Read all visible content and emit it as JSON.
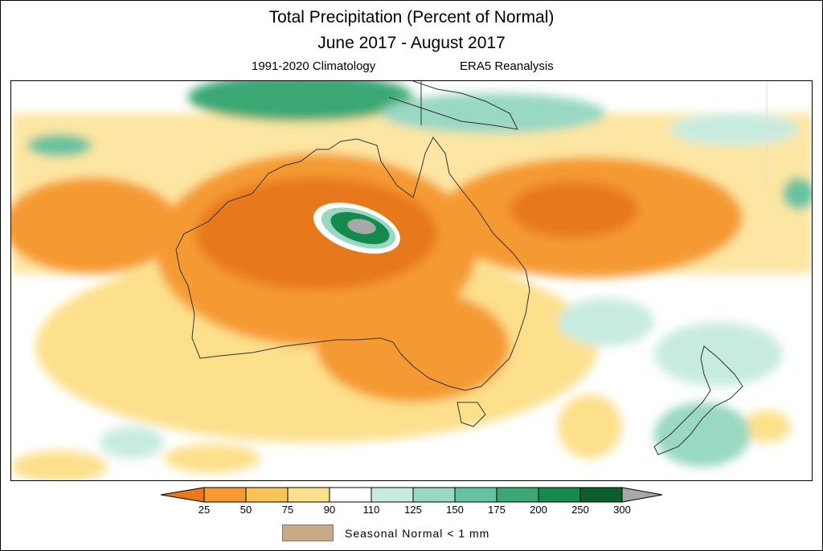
{
  "title_line1": "Total Precipitation (Percent of Normal)",
  "title_line2": "June 2017 - August 2017",
  "climatology": "1991-2020 Climatology",
  "dataset": "ERA5 Reanalysis",
  "colorbar": {
    "ticks": [
      "25",
      "50",
      "75",
      "90",
      "110",
      "125",
      "150",
      "175",
      "200",
      "250",
      "300"
    ],
    "colors": [
      "#e8781a",
      "#f59a30",
      "#f8c45a",
      "#fde08c",
      "#ffffff",
      "#c8ebe0",
      "#99d8c2",
      "#66c2a0",
      "#3aa874",
      "#168a4e",
      "#0b5e2e",
      "#a8a8a8"
    ]
  },
  "seasonal_normal_label": "Seasonal Normal  <  1  mm",
  "seasonal_normal_color": "#c7ab88"
}
